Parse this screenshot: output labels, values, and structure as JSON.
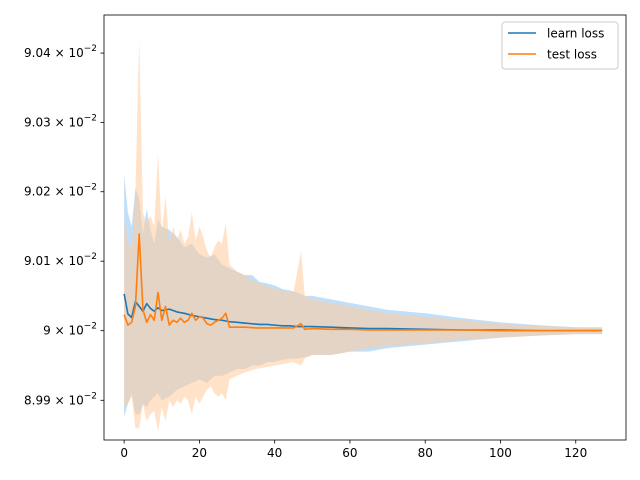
{
  "chart_data": {
    "type": "line",
    "title": "",
    "xlabel": "",
    "ylabel": "",
    "xlim": [
      -5.35,
      133.35
    ],
    "ylim": [
      0.089843,
      0.090455
    ],
    "yscale": "log",
    "grid": false,
    "legend_placement": "top-right",
    "colors": {
      "learn": "#1f77b4",
      "test": "#ff7f0e",
      "learn_band": "#a6d2f7",
      "test_band": "#ffcb9a"
    },
    "x_ticks": [
      {
        "value": 0,
        "label": "0"
      },
      {
        "value": 20,
        "label": "20"
      },
      {
        "value": 40,
        "label": "40"
      },
      {
        "value": 60,
        "label": "60"
      },
      {
        "value": 80,
        "label": "80"
      },
      {
        "value": 100,
        "label": "100"
      },
      {
        "value": 120,
        "label": "120"
      }
    ],
    "y_ticks": [
      {
        "value": 0.0899,
        "mant": "8.99",
        "exp": "−2"
      },
      {
        "value": 0.09,
        "mant": "9",
        "exp": "−2"
      },
      {
        "value": 0.0901,
        "mant": "9.01",
        "exp": "−2"
      },
      {
        "value": 0.0902,
        "mant": "9.02",
        "exp": "−2"
      },
      {
        "value": 0.0903,
        "mant": "9.03",
        "exp": "−2"
      },
      {
        "value": 0.0904,
        "mant": "9.04",
        "exp": "−2"
      }
    ],
    "y_tick_base": "× 10",
    "series": [
      {
        "name": "learn loss",
        "x": [
          0,
          1,
          2,
          3,
          4,
          5,
          6,
          7,
          8,
          9,
          10,
          12,
          14,
          16,
          18,
          20,
          22,
          24,
          26,
          28,
          30,
          32,
          34,
          36,
          38,
          40,
          42,
          44,
          46,
          48,
          50,
          55,
          60,
          65,
          70,
          80,
          90,
          100,
          110,
          120,
          127
        ],
        "y": [
          0.090053,
          0.090024,
          0.090019,
          0.090042,
          0.090035,
          0.090028,
          0.090039,
          0.090032,
          0.090028,
          0.090033,
          0.090029,
          0.090031,
          0.090027,
          0.090025,
          0.090022,
          0.09002,
          0.090018,
          0.090016,
          0.090015,
          0.090013,
          0.090012,
          0.090011,
          0.09001,
          0.090009,
          0.090009,
          0.090008,
          0.090007,
          0.090007,
          0.090006,
          0.090006,
          0.090006,
          0.090005,
          0.090004,
          0.090003,
          0.090003,
          0.090002,
          0.090001,
          0.090001,
          0.09,
          0.09,
          0.09
        ],
        "lower": [
          0.089876,
          0.089895,
          0.08991,
          0.08988,
          0.08988,
          0.089895,
          0.08989,
          0.0899,
          0.089905,
          0.08991,
          0.0899,
          0.089905,
          0.089915,
          0.08992,
          0.089925,
          0.08993,
          0.089925,
          0.089935,
          0.089935,
          0.08994,
          0.089945,
          0.089945,
          0.08995,
          0.08995,
          0.089955,
          0.089955,
          0.089958,
          0.08996,
          0.08996,
          0.089962,
          0.089965,
          0.089965,
          0.08997,
          0.08997,
          0.089975,
          0.08998,
          0.089985,
          0.08999,
          0.089993,
          0.089995,
          0.089995
        ],
        "upper": [
          0.090225,
          0.09017,
          0.09015,
          0.090205,
          0.09019,
          0.09014,
          0.090175,
          0.090145,
          0.090125,
          0.09016,
          0.09015,
          0.090145,
          0.090135,
          0.09012,
          0.090125,
          0.09011,
          0.090105,
          0.09011,
          0.090095,
          0.09009,
          0.090085,
          0.09008,
          0.09008,
          0.09007,
          0.090068,
          0.090065,
          0.09006,
          0.090058,
          0.090055,
          0.09005,
          0.09005,
          0.090045,
          0.09004,
          0.090035,
          0.09003,
          0.090025,
          0.090018,
          0.090012,
          0.090008,
          0.090005,
          0.090005
        ]
      },
      {
        "name": "test loss",
        "x": [
          0,
          1,
          2,
          3,
          4,
          5,
          6,
          7,
          8,
          9,
          10,
          11,
          12,
          13,
          14,
          15,
          16,
          17,
          18,
          19,
          20,
          21,
          22,
          23,
          24,
          25,
          26,
          27,
          28,
          30,
          32,
          35,
          40,
          45,
          47,
          48,
          50,
          55,
          60,
          65,
          70,
          80,
          90,
          100,
          110,
          120,
          127
        ],
        "y": [
          0.090023,
          0.090008,
          0.090012,
          0.090035,
          0.090139,
          0.09003,
          0.090012,
          0.090023,
          0.090015,
          0.090055,
          0.090015,
          0.090035,
          0.090008,
          0.090015,
          0.090012,
          0.090018,
          0.090012,
          0.090015,
          0.090025,
          0.090015,
          0.09002,
          0.090018,
          0.09001,
          0.090008,
          0.090012,
          0.090015,
          0.090018,
          0.090025,
          0.090005,
          0.090005,
          0.090005,
          0.090004,
          0.090004,
          0.090004,
          0.09001,
          0.090002,
          0.090003,
          0.090002,
          0.090002,
          0.090001,
          0.090001,
          0.090001,
          0.090001,
          0.09,
          0.09,
          0.09,
          0.09
        ],
        "lower": [
          0.08989,
          0.089895,
          0.089905,
          0.08986,
          0.08986,
          0.089895,
          0.08987,
          0.08988,
          0.089885,
          0.089855,
          0.08989,
          0.08987,
          0.0899,
          0.08989,
          0.0899,
          0.089895,
          0.089905,
          0.0899,
          0.08988,
          0.089905,
          0.089895,
          0.089905,
          0.089915,
          0.08992,
          0.08991,
          0.089905,
          0.08991,
          0.0899,
          0.08993,
          0.089935,
          0.08994,
          0.089945,
          0.08995,
          0.089955,
          0.08995,
          0.08996,
          0.089965,
          0.089965,
          0.08997,
          0.089975,
          0.089978,
          0.089982,
          0.089987,
          0.08999,
          0.089993,
          0.089995,
          0.089996
        ],
        "upper": [
          0.09016,
          0.09013,
          0.090115,
          0.0902,
          0.09042,
          0.09017,
          0.090155,
          0.090165,
          0.09015,
          0.090255,
          0.09014,
          0.090195,
          0.09012,
          0.09015,
          0.09013,
          0.090145,
          0.090125,
          0.090135,
          0.09017,
          0.09013,
          0.09015,
          0.090135,
          0.090115,
          0.090105,
          0.09012,
          0.09013,
          0.090125,
          0.090155,
          0.090095,
          0.090085,
          0.09008,
          0.09007,
          0.09006,
          0.090055,
          0.090115,
          0.09005,
          0.090045,
          0.09004,
          0.090035,
          0.09003,
          0.090025,
          0.09002,
          0.090015,
          0.09001,
          0.090007,
          0.090005,
          0.090004
        ]
      }
    ]
  }
}
